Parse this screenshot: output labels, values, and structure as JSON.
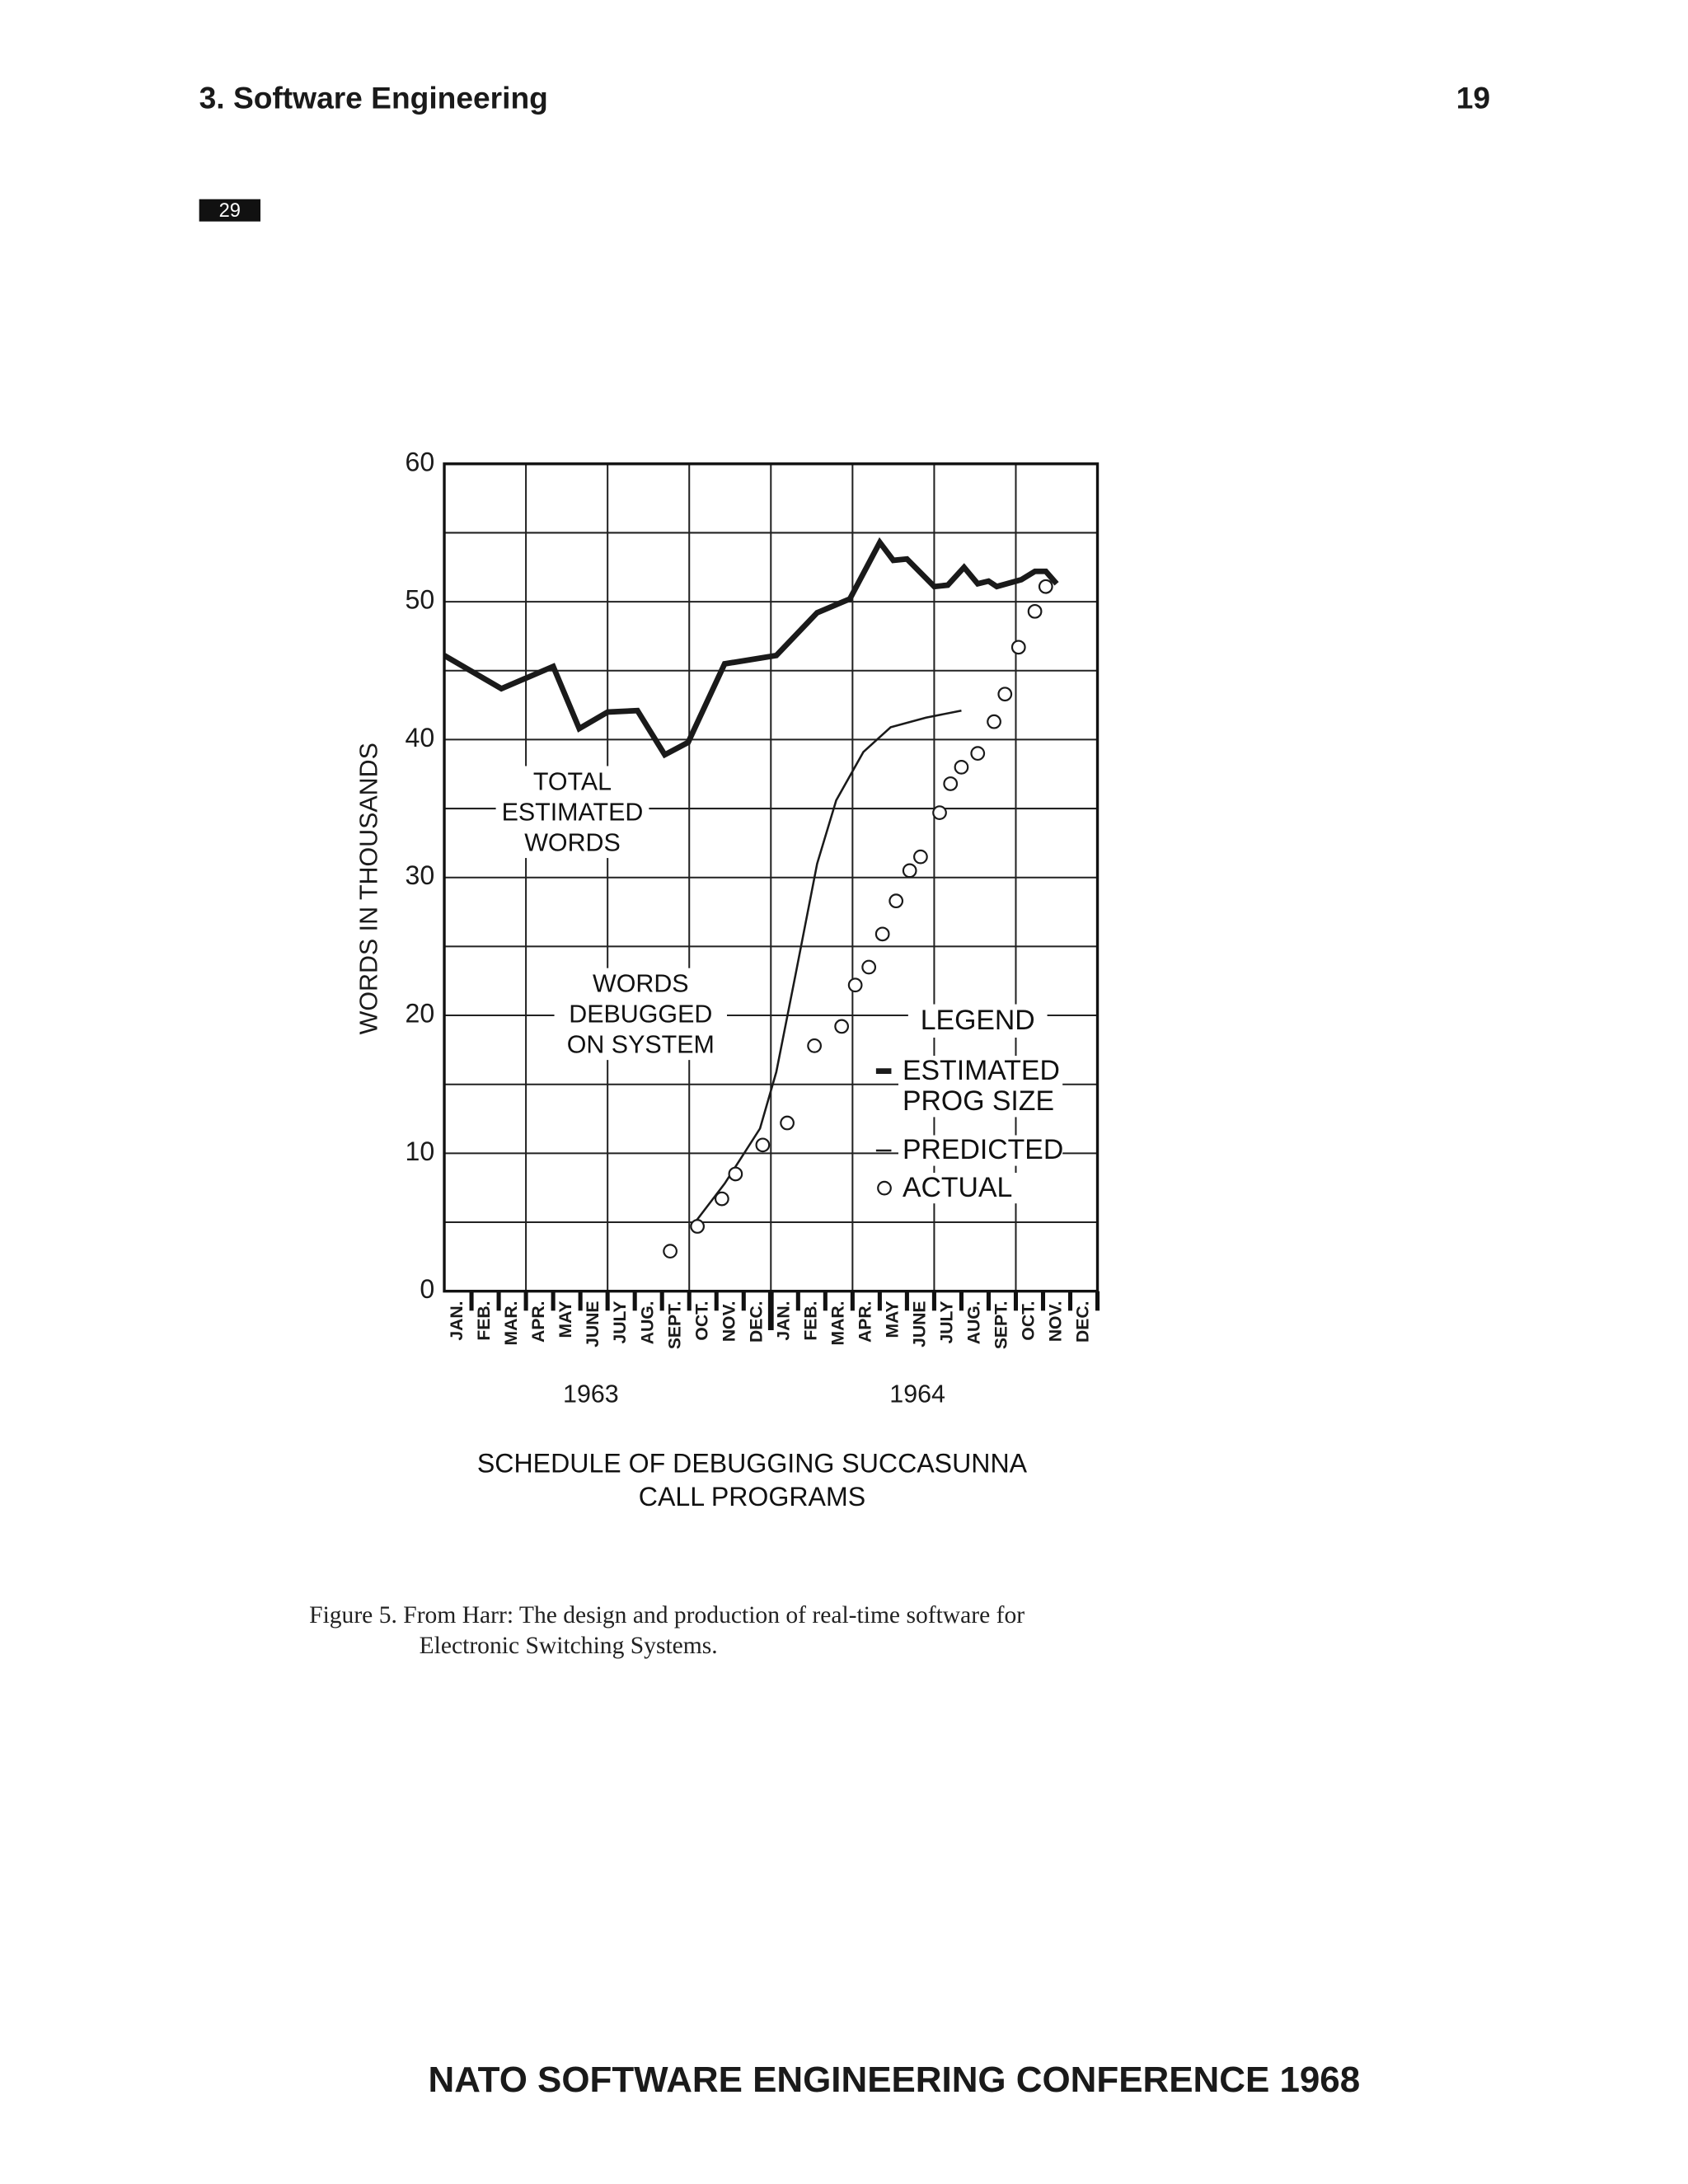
{
  "header": {
    "section": "3. Software Engineering",
    "page": "19"
  },
  "page_tag": "29",
  "chart_data": {
    "type": "line",
    "ylabel": "WORDS IN THOUSANDS",
    "xlabel": "SCHEDULE OF DEBUGGING SUCCASUNNA CALL PROGRAMS",
    "categories": [
      "JAN.",
      "FEB.",
      "MAR.",
      "APR.",
      "MAY",
      "JUNE",
      "JULY",
      "AUG.",
      "SEPT.",
      "OCT.",
      "NOV.",
      "DEC.",
      "JAN.",
      "FEB.",
      "MAR.",
      "APR.",
      "MAY",
      "JUNE",
      "JULY",
      "AUG.",
      "SEPT.",
      "OCT.",
      "NOV.",
      "DEC."
    ],
    "years": [
      "1963",
      "1964"
    ],
    "xlim": [
      0,
      24
    ],
    "xticks": [
      1,
      2,
      3,
      4,
      5,
      6,
      7,
      8,
      9,
      10,
      11,
      12,
      13,
      14,
      15,
      16,
      17,
      18,
      19,
      20,
      21,
      22,
      23,
      24
    ],
    "xgrid_every": 3,
    "ylim": [
      0,
      60
    ],
    "yticks": [
      0,
      10,
      20,
      30,
      40,
      50,
      60
    ],
    "minor_yticks": [
      5,
      15,
      25,
      35,
      45,
      55
    ],
    "grid": true,
    "annotations": [
      "TOTAL ESTIMATED WORDS",
      "WORDS DEBUGGED ON SYSTEM"
    ],
    "legend_title": "LEGEND",
    "series": [
      {
        "name": "ESTIMATED PROG SIZE",
        "style": "thick",
        "color": "#1a1a1a",
        "x": [
          0,
          2.1,
          4.0,
          4.96,
          6.0,
          7.1,
          8.1,
          8.96,
          10.3,
          12.2,
          13.7,
          14.9,
          16.0,
          16.5,
          17.0,
          18.0,
          18.5,
          19.1,
          19.6,
          20.0,
          20.3,
          21.2,
          21.7,
          22.1,
          22.5
        ],
        "values": [
          46.1,
          43.7,
          45.3,
          40.8,
          42.0,
          42.1,
          38.9,
          39.8,
          45.5,
          46.1,
          49.2,
          50.2,
          54.3,
          53.0,
          53.1,
          51.1,
          51.2,
          52.5,
          51.3,
          51.5,
          51.1,
          51.6,
          52.2,
          52.2,
          51.3
        ]
      },
      {
        "name": "PREDICTED",
        "style": "thin",
        "color": "#1a1a1a",
        "x": [
          9.1,
          10.3,
          11.6,
          12.2,
          12.9,
          13.7,
          14.4,
          15.4,
          16.4,
          17.7,
          19.0
        ],
        "values": [
          4.7,
          7.8,
          11.8,
          15.9,
          22.9,
          31.0,
          35.6,
          39.1,
          40.9,
          41.6,
          42.1
        ]
      },
      {
        "name": "ACTUAL",
        "style": "circles",
        "color": "#1a1a1a",
        "x": [
          8.3,
          9.3,
          10.2,
          10.7,
          11.7,
          12.6,
          13.6,
          14.6,
          15.1,
          15.6,
          16.1,
          16.6,
          17.1,
          17.5,
          18.2,
          18.6,
          19.0,
          19.6,
          20.2,
          20.6,
          21.1,
          21.7,
          22.1
        ],
        "values": [
          2.9,
          4.7,
          6.7,
          8.5,
          10.6,
          12.2,
          17.8,
          19.2,
          22.2,
          23.5,
          25.9,
          28.3,
          30.5,
          31.5,
          34.7,
          36.8,
          38.0,
          39.0,
          41.3,
          43.3,
          46.7,
          49.3,
          51.1
        ]
      }
    ]
  },
  "caption": [
    "Figure 5. From Harr: The design and production of real-time software for",
    "Electronic Switching Systems."
  ],
  "footer": "NATO SOFTWARE ENGINEERING CONFERENCE 1968"
}
